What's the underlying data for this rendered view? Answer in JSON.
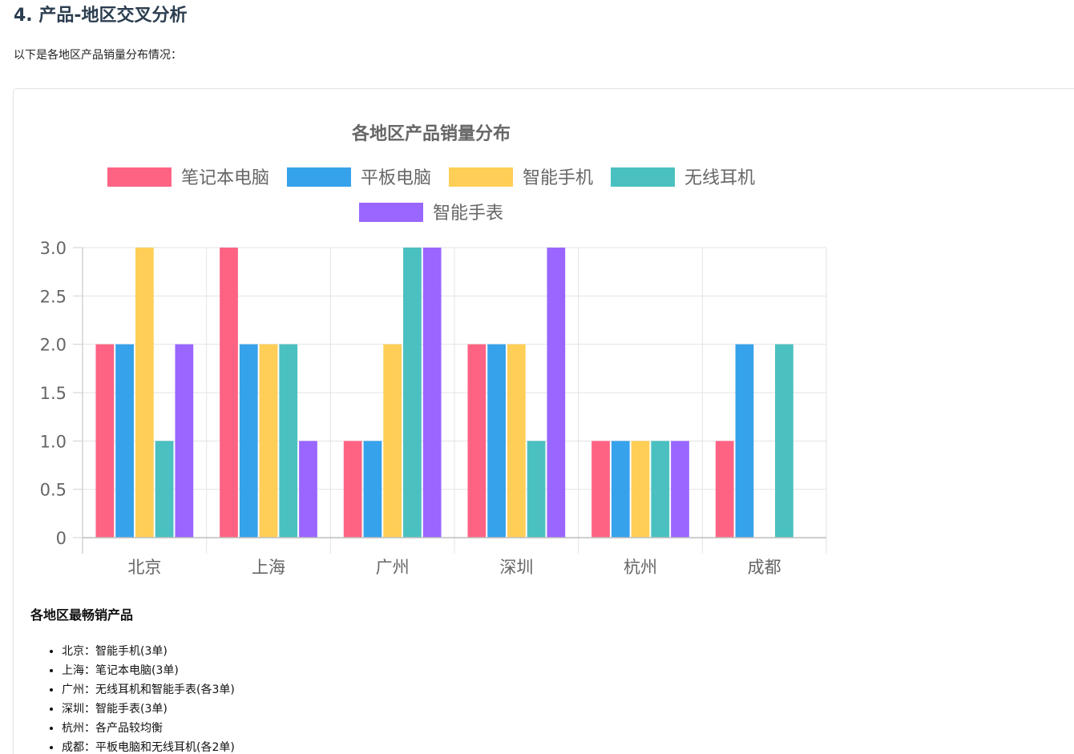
{
  "section": {
    "title": "4. 产品-地区交叉分析",
    "intro": "以下是各地区产品销量分布情况："
  },
  "chart_data": {
    "type": "bar",
    "title": "各地区产品销量分布",
    "categories": [
      "北京",
      "上海",
      "广州",
      "深圳",
      "杭州",
      "成都"
    ],
    "series": [
      {
        "name": "笔记本电脑",
        "color": "#ff6384",
        "values": [
          2,
          3,
          1,
          2,
          1,
          1
        ]
      },
      {
        "name": "平板电脑",
        "color": "#36a2eb",
        "values": [
          2,
          2,
          1,
          2,
          1,
          2
        ]
      },
      {
        "name": "智能手机",
        "color": "#ffce56",
        "values": [
          3,
          2,
          2,
          2,
          1,
          0
        ]
      },
      {
        "name": "无线耳机",
        "color": "#4bc0c0",
        "values": [
          1,
          2,
          3,
          1,
          1,
          2
        ]
      },
      {
        "name": "智能手表",
        "color": "#9966ff",
        "values": [
          2,
          1,
          3,
          3,
          1,
          0
        ]
      }
    ],
    "ylim": [
      0,
      3
    ],
    "y_ticks": [
      "0",
      "0.5",
      "1.0",
      "1.5",
      "2.0",
      "2.5",
      "3.0"
    ],
    "y_tick_values": [
      0,
      0.5,
      1,
      1.5,
      2,
      2.5,
      3
    ],
    "legend_position": "top",
    "grid": true
  },
  "best_sellers": {
    "title": "各地区最畅销产品",
    "items": [
      "北京：智能手机(3单)",
      "上海：笔记本电脑(3单)",
      "广州：无线耳机和智能手表(各3单)",
      "深圳：智能手表(3单)",
      "杭州：各产品较均衡",
      "成都：平板电脑和无线耳机(各2单)"
    ]
  }
}
